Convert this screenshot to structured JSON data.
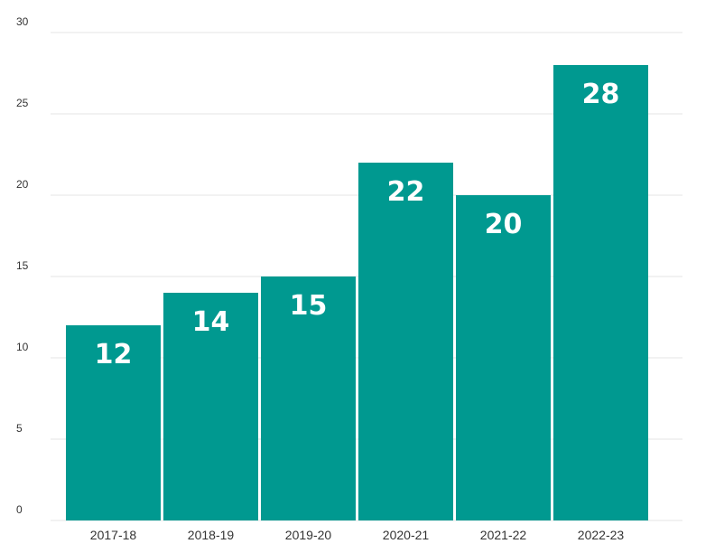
{
  "chart_data": {
    "type": "bar",
    "categories": [
      "2017-18",
      "2018-19",
      "2019-20",
      "2020-21",
      "2021-22",
      "2022-23"
    ],
    "values": [
      12,
      14,
      15,
      22,
      20,
      28
    ],
    "title": "",
    "xlabel": "",
    "ylabel": "",
    "ylim": [
      0,
      30
    ],
    "yticks": [
      0,
      5,
      10,
      15,
      20,
      25,
      30
    ],
    "grid": true,
    "data_labels": true,
    "bar_color": "#009990",
    "label_color": "#ffffff"
  }
}
